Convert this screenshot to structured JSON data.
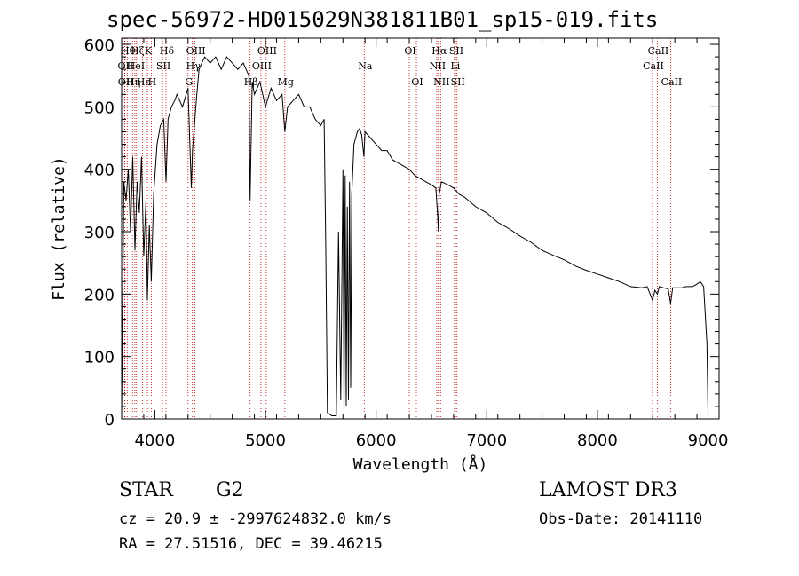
{
  "title": "spec-56972-HD015029N381811B01_sp15-019.fits",
  "chart_data": {
    "type": "line",
    "xlabel": "Wavelength (Å)",
    "ylabel": "Flux (relative)",
    "xlim": [
      3700,
      9100
    ],
    "ylim": [
      0,
      610
    ],
    "x_ticks": [
      4000,
      5000,
      6000,
      7000,
      8000,
      9000
    ],
    "y_ticks": [
      0,
      100,
      200,
      300,
      400,
      500,
      600
    ],
    "series": [
      {
        "x": [
          3700,
          3720,
          3740,
          3760,
          3780,
          3800,
          3820,
          3840,
          3860,
          3880,
          3900,
          3920,
          3933,
          3950,
          3968,
          3990,
          4020,
          4050,
          4080,
          4101,
          4120,
          4150,
          4180,
          4200,
          4250,
          4300,
          4330,
          4340,
          4380,
          4400,
          4450,
          4500,
          4550,
          4600,
          4650,
          4700,
          4750,
          4800,
          4850,
          4861,
          4880,
          4900,
          4950,
          5000,
          5050,
          5100,
          5150,
          5175,
          5200,
          5250,
          5300,
          5350,
          5400,
          5450,
          5500,
          5530,
          5545,
          5560,
          5600,
          5640,
          5660,
          5680,
          5700,
          5710,
          5720,
          5730,
          5740,
          5750,
          5760,
          5770,
          5780,
          5800,
          5830,
          5850,
          5870,
          5890,
          5900,
          5950,
          6000,
          6050,
          6100,
          6150,
          6200,
          6250,
          6300,
          6350,
          6400,
          6450,
          6500,
          6540,
          6555,
          6563,
          6570,
          6590,
          6650,
          6700,
          6750,
          6800,
          6900,
          7000,
          7100,
          7200,
          7300,
          7400,
          7500,
          7600,
          7700,
          7800,
          7900,
          8000,
          8100,
          8200,
          8300,
          8400,
          8450,
          8498,
          8520,
          8542,
          8560,
          8600,
          8640,
          8662,
          8680,
          8720,
          8760,
          8800,
          8860,
          8900,
          8930,
          8960,
          8990,
          9000
        ],
        "y": [
          5,
          380,
          350,
          400,
          300,
          420,
          270,
          380,
          330,
          420,
          260,
          350,
          190,
          310,
          220,
          360,
          440,
          470,
          480,
          380,
          480,
          500,
          510,
          520,
          500,
          530,
          370,
          430,
          520,
          560,
          580,
          570,
          580,
          560,
          580,
          570,
          560,
          570,
          550,
          350,
          540,
          520,
          540,
          500,
          530,
          510,
          520,
          460,
          500,
          510,
          520,
          500,
          500,
          480,
          470,
          480,
          280,
          10,
          5,
          5,
          300,
          30,
          400,
          10,
          390,
          20,
          340,
          30,
          380,
          50,
          360,
          440,
          460,
          465,
          455,
          420,
          460,
          450,
          440,
          430,
          430,
          415,
          410,
          405,
          400,
          390,
          385,
          380,
          375,
          370,
          330,
          300,
          360,
          380,
          375,
          370,
          360,
          355,
          340,
          330,
          315,
          305,
          293,
          283,
          270,
          262,
          255,
          245,
          238,
          232,
          226,
          220,
          212,
          210,
          212,
          190,
          206,
          200,
          212,
          210,
          208,
          185,
          210,
          210,
          210,
          212,
          212,
          216,
          220,
          212,
          120,
          10
        ]
      }
    ],
    "lines": [
      {
        "x": 3727,
        "label": "OII",
        "row": 2
      },
      {
        "x": 3729,
        "label": "OII",
        "row": 3
      },
      {
        "x": 3750,
        "label": "Hθ",
        "row": 1
      },
      {
        "x": 3798,
        "label": "Hη",
        "row": 3
      },
      {
        "x": 3820,
        "label": "HeI",
        "row": 2
      },
      {
        "x": 3835,
        "label": "Hζ",
        "row": 1
      },
      {
        "x": 3889,
        "label": "Hε",
        "row": 3
      },
      {
        "x": 3933,
        "label": "K",
        "row": 1
      },
      {
        "x": 3968,
        "label": "H",
        "row": 3
      },
      {
        "x": 4070,
        "label": "SII",
        "row": 2
      },
      {
        "x": 4101,
        "label": "Hδ",
        "row": 1
      },
      {
        "x": 4300,
        "label": "G",
        "row": 3
      },
      {
        "x": 4340,
        "label": "Hγ",
        "row": 2
      },
      {
        "x": 4363,
        "label": "OIII",
        "row": 1
      },
      {
        "x": 4861,
        "label": "Hβ",
        "row": 3
      },
      {
        "x": 4959,
        "label": "OIII",
        "row": 2
      },
      {
        "x": 5007,
        "label": "OIII",
        "row": 1
      },
      {
        "x": 5175,
        "label": "Mg",
        "row": 3
      },
      {
        "x": 5893,
        "label": "Na",
        "row": 2
      },
      {
        "x": 6300,
        "label": "OI",
        "row": 1
      },
      {
        "x": 6364,
        "label": "OI",
        "row": 3
      },
      {
        "x": 6548,
        "label": "NII",
        "row": 2
      },
      {
        "x": 6563,
        "label": "Hα",
        "row": 1
      },
      {
        "x": 6583,
        "label": "NII",
        "row": 3
      },
      {
        "x": 6708,
        "label": "Li",
        "row": 2
      },
      {
        "x": 6717,
        "label": "SII",
        "row": 1
      },
      {
        "x": 6731,
        "label": "SII",
        "row": 3
      },
      {
        "x": 8498,
        "label": "CaII",
        "row": 2
      },
      {
        "x": 8542,
        "label": "CaII",
        "row": 1
      },
      {
        "x": 8662,
        "label": "CaII",
        "row": 3
      }
    ]
  },
  "info": {
    "class": "STAR",
    "subclass": "G2",
    "survey": "LAMOST DR3",
    "cz": "cz = 20.9 ± -2997624832.0 km/s",
    "obs_date": "Obs-Date: 20141110",
    "radec": "RA =  27.51516, DEC =  39.46215"
  }
}
